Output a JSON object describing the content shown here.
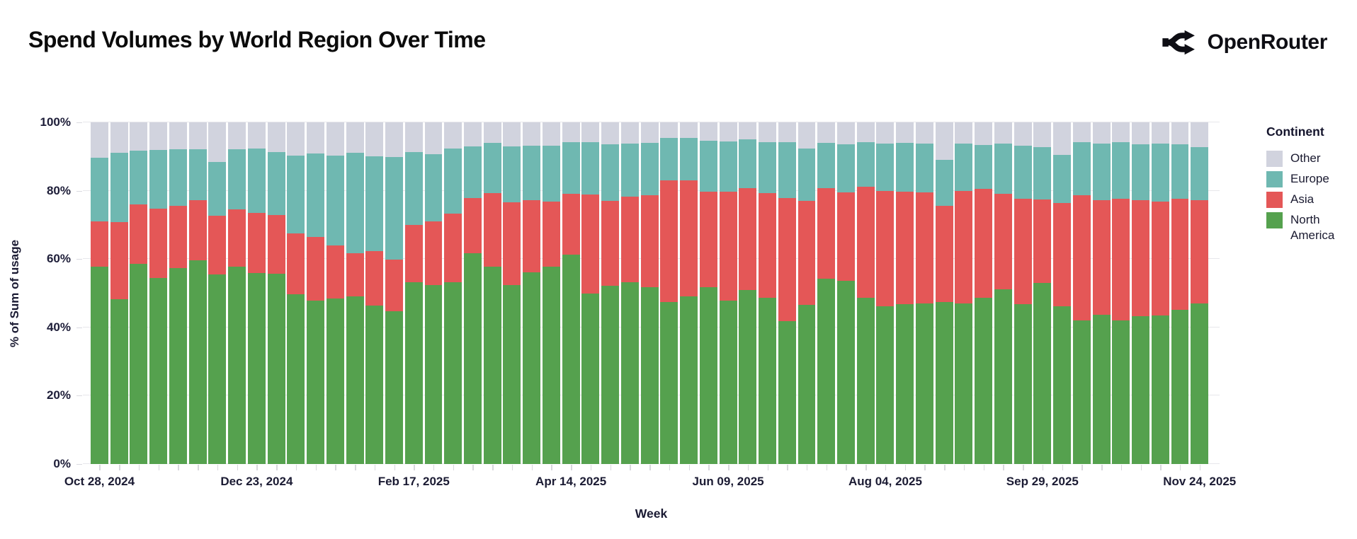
{
  "header": {
    "title": "Spend Volumes by World Region Over Time",
    "brand": {
      "name": "OpenRouter"
    }
  },
  "chart_data": {
    "type": "bar",
    "variant": "stacked-normalized",
    "title": "Spend Volumes by World Region Over Time",
    "xlabel": "Week",
    "ylabel": "% of Sum of usage",
    "ylim": [
      0,
      100
    ],
    "yticks": [
      "0%",
      "20%",
      "40%",
      "60%",
      "80%",
      "100%"
    ],
    "xtick_interval": 8,
    "xtick_labels_shown": [
      "Oct 28, 2024",
      "Dec 23, 2024",
      "Feb 17, 2025",
      "Apr 14, 2025",
      "Jun 09, 2025",
      "Aug 04, 2025",
      "Sep 29, 2025",
      "Nov 24, 2025"
    ],
    "x": [
      "Oct 28, 2024",
      "Nov 04, 2024",
      "Nov 11, 2024",
      "Nov 18, 2024",
      "Nov 25, 2024",
      "Dec 02, 2024",
      "Dec 09, 2024",
      "Dec 16, 2024",
      "Dec 23, 2024",
      "Dec 30, 2024",
      "Jan 06, 2025",
      "Jan 13, 2025",
      "Jan 20, 2025",
      "Jan 27, 2025",
      "Feb 03, 2025",
      "Feb 10, 2025",
      "Feb 17, 2025",
      "Feb 24, 2025",
      "Mar 03, 2025",
      "Mar 10, 2025",
      "Mar 17, 2025",
      "Mar 24, 2025",
      "Mar 31, 2025",
      "Apr 07, 2025",
      "Apr 14, 2025",
      "Apr 21, 2025",
      "Apr 28, 2025",
      "May 05, 2025",
      "May 12, 2025",
      "May 19, 2025",
      "May 26, 2025",
      "Jun 02, 2025",
      "Jun 09, 2025",
      "Jun 16, 2025",
      "Jun 23, 2025",
      "Jun 30, 2025",
      "Jul 07, 2025",
      "Jul 14, 2025",
      "Jul 21, 2025",
      "Jul 28, 2025",
      "Aug 04, 2025",
      "Aug 11, 2025",
      "Aug 18, 2025",
      "Aug 25, 2025",
      "Sep 01, 2025",
      "Sep 08, 2025",
      "Sep 15, 2025",
      "Sep 22, 2025",
      "Sep 29, 2025",
      "Oct 06, 2025",
      "Oct 13, 2025",
      "Oct 20, 2025",
      "Oct 27, 2025",
      "Nov 03, 2025",
      "Nov 10, 2025",
      "Nov 17, 2025",
      "Nov 24, 2025"
    ],
    "series": [
      {
        "name": "North America",
        "color": "#55A14E",
        "values": [
          57.7,
          48.3,
          58.5,
          54.5,
          57.4,
          59.7,
          55.4,
          57.7,
          55.9,
          55.6,
          49.7,
          47.8,
          48.5,
          49.0,
          46.4,
          44.7,
          53.3,
          52.4,
          53.3,
          61.7,
          57.7,
          52.3,
          56.1,
          57.8,
          61.2,
          49.9,
          52.1,
          53.3,
          51.7,
          47.4,
          49.0,
          51.7,
          47.8,
          50.9,
          48.6,
          41.9,
          46.6,
          54.3,
          53.7,
          48.7,
          46.2,
          46.8,
          47.1,
          47.4,
          47.1,
          48.7,
          51.2,
          46.8,
          53.0,
          46.2,
          42.1,
          43.7,
          42.1,
          43.2,
          43.4,
          45.2,
          46.9
        ]
      },
      {
        "name": "Asia",
        "color": "#E45757",
        "values": [
          13.3,
          22.5,
          17.4,
          20.3,
          18.1,
          17.5,
          17.2,
          16.9,
          17.6,
          17.2,
          17.9,
          18.7,
          15.5,
          12.8,
          15.9,
          15.2,
          16.7,
          18.7,
          19.9,
          16.1,
          21.6,
          24.3,
          21.1,
          19.0,
          17.8,
          28.9,
          25.0,
          25.0,
          26.9,
          35.6,
          34.0,
          28.0,
          31.9,
          29.8,
          30.7,
          35.9,
          30.4,
          26.4,
          25.8,
          32.5,
          33.8,
          32.9,
          32.4,
          28.2,
          32.9,
          31.9,
          27.8,
          30.9,
          24.4,
          30.1,
          36.5,
          33.5,
          35.6,
          34.0,
          33.4,
          32.5,
          30.3
        ]
      },
      {
        "name": "Europe",
        "color": "#6FB8B1",
        "values": [
          18.7,
          20.4,
          15.8,
          17.1,
          16.6,
          14.9,
          15.8,
          17.6,
          18.8,
          18.6,
          22.7,
          24.3,
          26.2,
          29.2,
          27.7,
          30.0,
          21.4,
          19.5,
          19.1,
          15.2,
          14.6,
          16.4,
          15.9,
          16.3,
          15.3,
          15.4,
          16.4,
          15.4,
          15.5,
          12.4,
          12.5,
          15.0,
          14.8,
          14.3,
          15.0,
          16.4,
          15.4,
          13.3,
          14.0,
          13.0,
          13.8,
          14.3,
          14.3,
          13.4,
          13.8,
          12.7,
          14.8,
          15.4,
          15.4,
          14.2,
          15.6,
          16.6,
          16.5,
          16.3,
          17.0,
          15.8,
          15.6
        ]
      },
      {
        "name": "Other",
        "color": "#D1D3DE",
        "values": [
          10.3,
          8.8,
          8.3,
          8.1,
          7.9,
          7.9,
          11.6,
          7.8,
          7.7,
          8.6,
          9.7,
          9.2,
          9.8,
          9.0,
          10.0,
          10.1,
          8.6,
          9.4,
          7.7,
          7.0,
          6.1,
          7.0,
          6.9,
          6.9,
          5.7,
          5.8,
          6.5,
          6.3,
          5.9,
          4.6,
          4.5,
          5.3,
          5.5,
          5.0,
          5.7,
          5.8,
          7.6,
          6.0,
          6.5,
          5.8,
          6.2,
          6.0,
          6.2,
          11.0,
          6.2,
          6.7,
          6.2,
          6.9,
          7.2,
          9.5,
          5.8,
          6.2,
          5.8,
          6.5,
          6.2,
          6.5,
          7.2
        ]
      }
    ],
    "legend": {
      "title": "Continent",
      "position": "right",
      "entries_top_to_bottom": [
        "Other",
        "Europe",
        "Asia",
        "North America"
      ]
    }
  }
}
